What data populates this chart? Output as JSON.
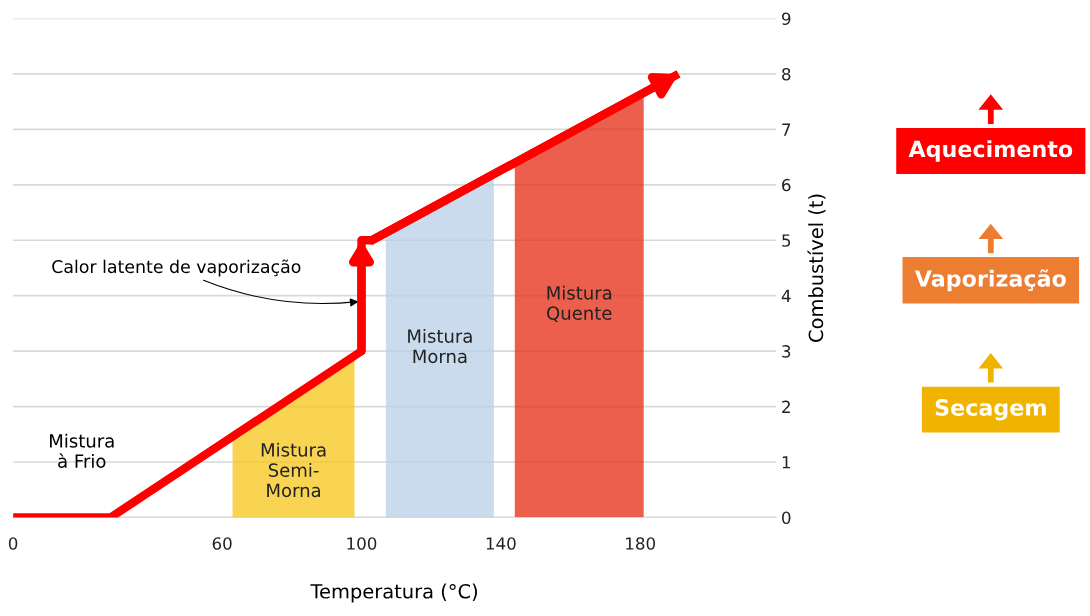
{
  "chart_data": {
    "type": "line",
    "xlabel": "Temperatura (°C)",
    "ylabel": "Combustível (t)",
    "x": [
      0,
      28,
      100,
      100,
      103,
      191
    ],
    "series": [
      {
        "color": "#ff0000",
        "values": [
          0,
          0,
          3,
          5,
          5,
          8
        ]
      },
      {
        "type": "area",
        "name": "Mistura\nSemi-\nMorna",
        "color": "#f5c518",
        "x": [
          63,
          98
        ],
        "values": [
          1.5,
          2.9
        ]
      },
      {
        "type": "area",
        "name": "Mistura\nMorna",
        "color": "#b8cfe8",
        "x": [
          107,
          138
        ],
        "values": [
          5.1,
          6.2
        ]
      },
      {
        "type": "area",
        "name": "Mistura\nQuente",
        "color": "#e52a10",
        "x": [
          144,
          181
        ],
        "values": [
          6.4,
          7.7
        ]
      }
    ],
    "xlim": [
      0,
      219
    ],
    "ylim": [
      0,
      9
    ],
    "xticks": [
      0,
      60,
      100,
      140,
      180
    ],
    "yticks": [
      0,
      1,
      2,
      3,
      4,
      5,
      6,
      7,
      8,
      9
    ],
    "grid": "y",
    "marker": "none",
    "line_style": "solid",
    "annotations": [
      "Mistura\nà Frio",
      {
        "text": "Calor latente de vaporização",
        "x": 100,
        "y": 3.9
      },
      "Aquecimento",
      "Vaporização",
      "Secagem"
    ]
  }
}
